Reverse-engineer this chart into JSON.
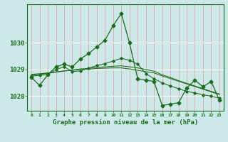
{
  "title": "Graphe pression niveau de la mer (hPa)",
  "hours": [
    0,
    1,
    2,
    3,
    4,
    5,
    6,
    7,
    8,
    9,
    10,
    11,
    12,
    13,
    14,
    15,
    16,
    17,
    18,
    19,
    20,
    21,
    22,
    23
  ],
  "pressure_main": [
    1028.7,
    1028.4,
    1028.8,
    1029.1,
    1029.2,
    1029.1,
    1029.4,
    1029.6,
    1029.85,
    1030.1,
    1030.65,
    1031.1,
    1030.0,
    1028.65,
    1028.6,
    1028.55,
    1027.65,
    1027.7,
    1027.75,
    1028.3,
    1028.6,
    1028.35,
    1028.55,
    1027.85
  ],
  "pressure_line2": [
    1028.75,
    1028.78,
    1028.82,
    1029.0,
    1029.1,
    1028.92,
    1028.95,
    1029.05,
    1029.15,
    1029.22,
    1029.32,
    1029.42,
    1029.35,
    1029.2,
    1028.85,
    1028.65,
    1028.5,
    1028.38,
    1028.28,
    1028.18,
    1028.12,
    1028.05,
    1028.0,
    1027.92
  ],
  "pressure_line3": [
    1028.78,
    1028.82,
    1028.86,
    1028.9,
    1028.94,
    1028.98,
    1029.02,
    1029.04,
    1029.08,
    1029.1,
    1029.12,
    1029.14,
    1029.1,
    1029.06,
    1029.0,
    1028.94,
    1028.8,
    1028.7,
    1028.58,
    1028.48,
    1028.38,
    1028.28,
    1028.18,
    1028.08
  ],
  "pressure_line4": [
    1028.82,
    1028.84,
    1028.87,
    1028.91,
    1028.95,
    1028.97,
    1029.0,
    1029.01,
    1029.04,
    1029.05,
    1029.06,
    1029.06,
    1029.02,
    1028.97,
    1028.92,
    1028.87,
    1028.76,
    1028.66,
    1028.56,
    1028.46,
    1028.36,
    1028.26,
    1028.16,
    1028.06
  ],
  "line_color": "#1a6b1a",
  "bg_color": "#cce8e8",
  "grid_color_v": "#e8a0a0",
  "grid_color_h": "#ffffff",
  "ylim_min": 1027.45,
  "ylim_max": 1031.45,
  "yticks": [
    1028,
    1029,
    1030
  ],
  "marker": "D",
  "markersize_main": 2.5,
  "markersize_line2": 1.8,
  "lw_main": 0.9,
  "lw_secondary": 0.75
}
